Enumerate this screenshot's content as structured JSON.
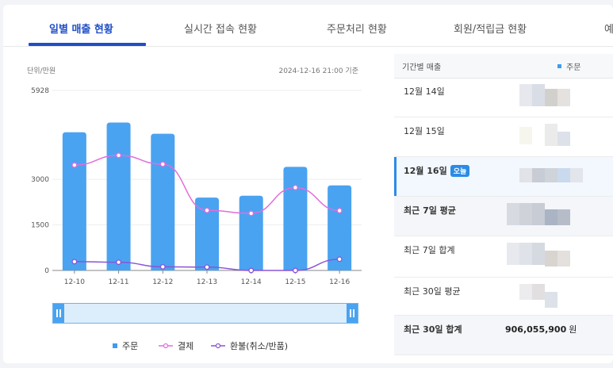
{
  "tabs": [
    "일별 매출 현황",
    "실시간 접속 현황",
    "주문처리 현황",
    "회원/적립금 현황",
    "예"
  ],
  "chart_header": {
    "unit": "단위/만원",
    "as_of": "2024-12-16 21:00 기준"
  },
  "chart_data": {
    "type": "bar",
    "categories": [
      "12-10",
      "12-11",
      "12-12",
      "12-13",
      "12-14",
      "12-15",
      "12-16"
    ],
    "yticks": [
      "5928",
      "3000",
      "1500",
      "0"
    ],
    "ylim": [
      0,
      5928
    ],
    "series": [
      {
        "name": "주문",
        "type": "bar",
        "color": "#4aa3f0",
        "values": [
          4550,
          4870,
          4500,
          2400,
          2460,
          3410,
          2800
        ]
      },
      {
        "name": "결제",
        "type": "line",
        "color": "#e36ddb",
        "values": [
          3470,
          3790,
          3500,
          1980,
          1880,
          2730,
          1970
        ]
      },
      {
        "name": "환불(취소/반품)",
        "type": "line",
        "color": "#8a55d6",
        "values": [
          290,
          270,
          120,
          110,
          0,
          0,
          370
        ]
      }
    ]
  },
  "legend": [
    "주문",
    "결제",
    "환불(취소/반품)"
  ],
  "sales_table": {
    "header": {
      "title": "기간별 매출",
      "series": "주문"
    },
    "rows": [
      {
        "label": "12월 14일",
        "value": ""
      },
      {
        "label": "12월 15일",
        "value": ""
      },
      {
        "label": "12월 16일",
        "badge": "오늘",
        "value": ""
      },
      {
        "label": "최근 7일 평균",
        "value": ""
      },
      {
        "label": "최근 7일 합계",
        "value": ""
      },
      {
        "label": "최근 30일 평균",
        "value": ""
      },
      {
        "label": "최근 30일 합계",
        "value": "906,055,900",
        "unit": "원"
      }
    ]
  },
  "colors": {
    "accent": "#1f4fc7",
    "bar": "#4aa3f0",
    "payment": "#e36ddb",
    "refund": "#8a55d6"
  }
}
